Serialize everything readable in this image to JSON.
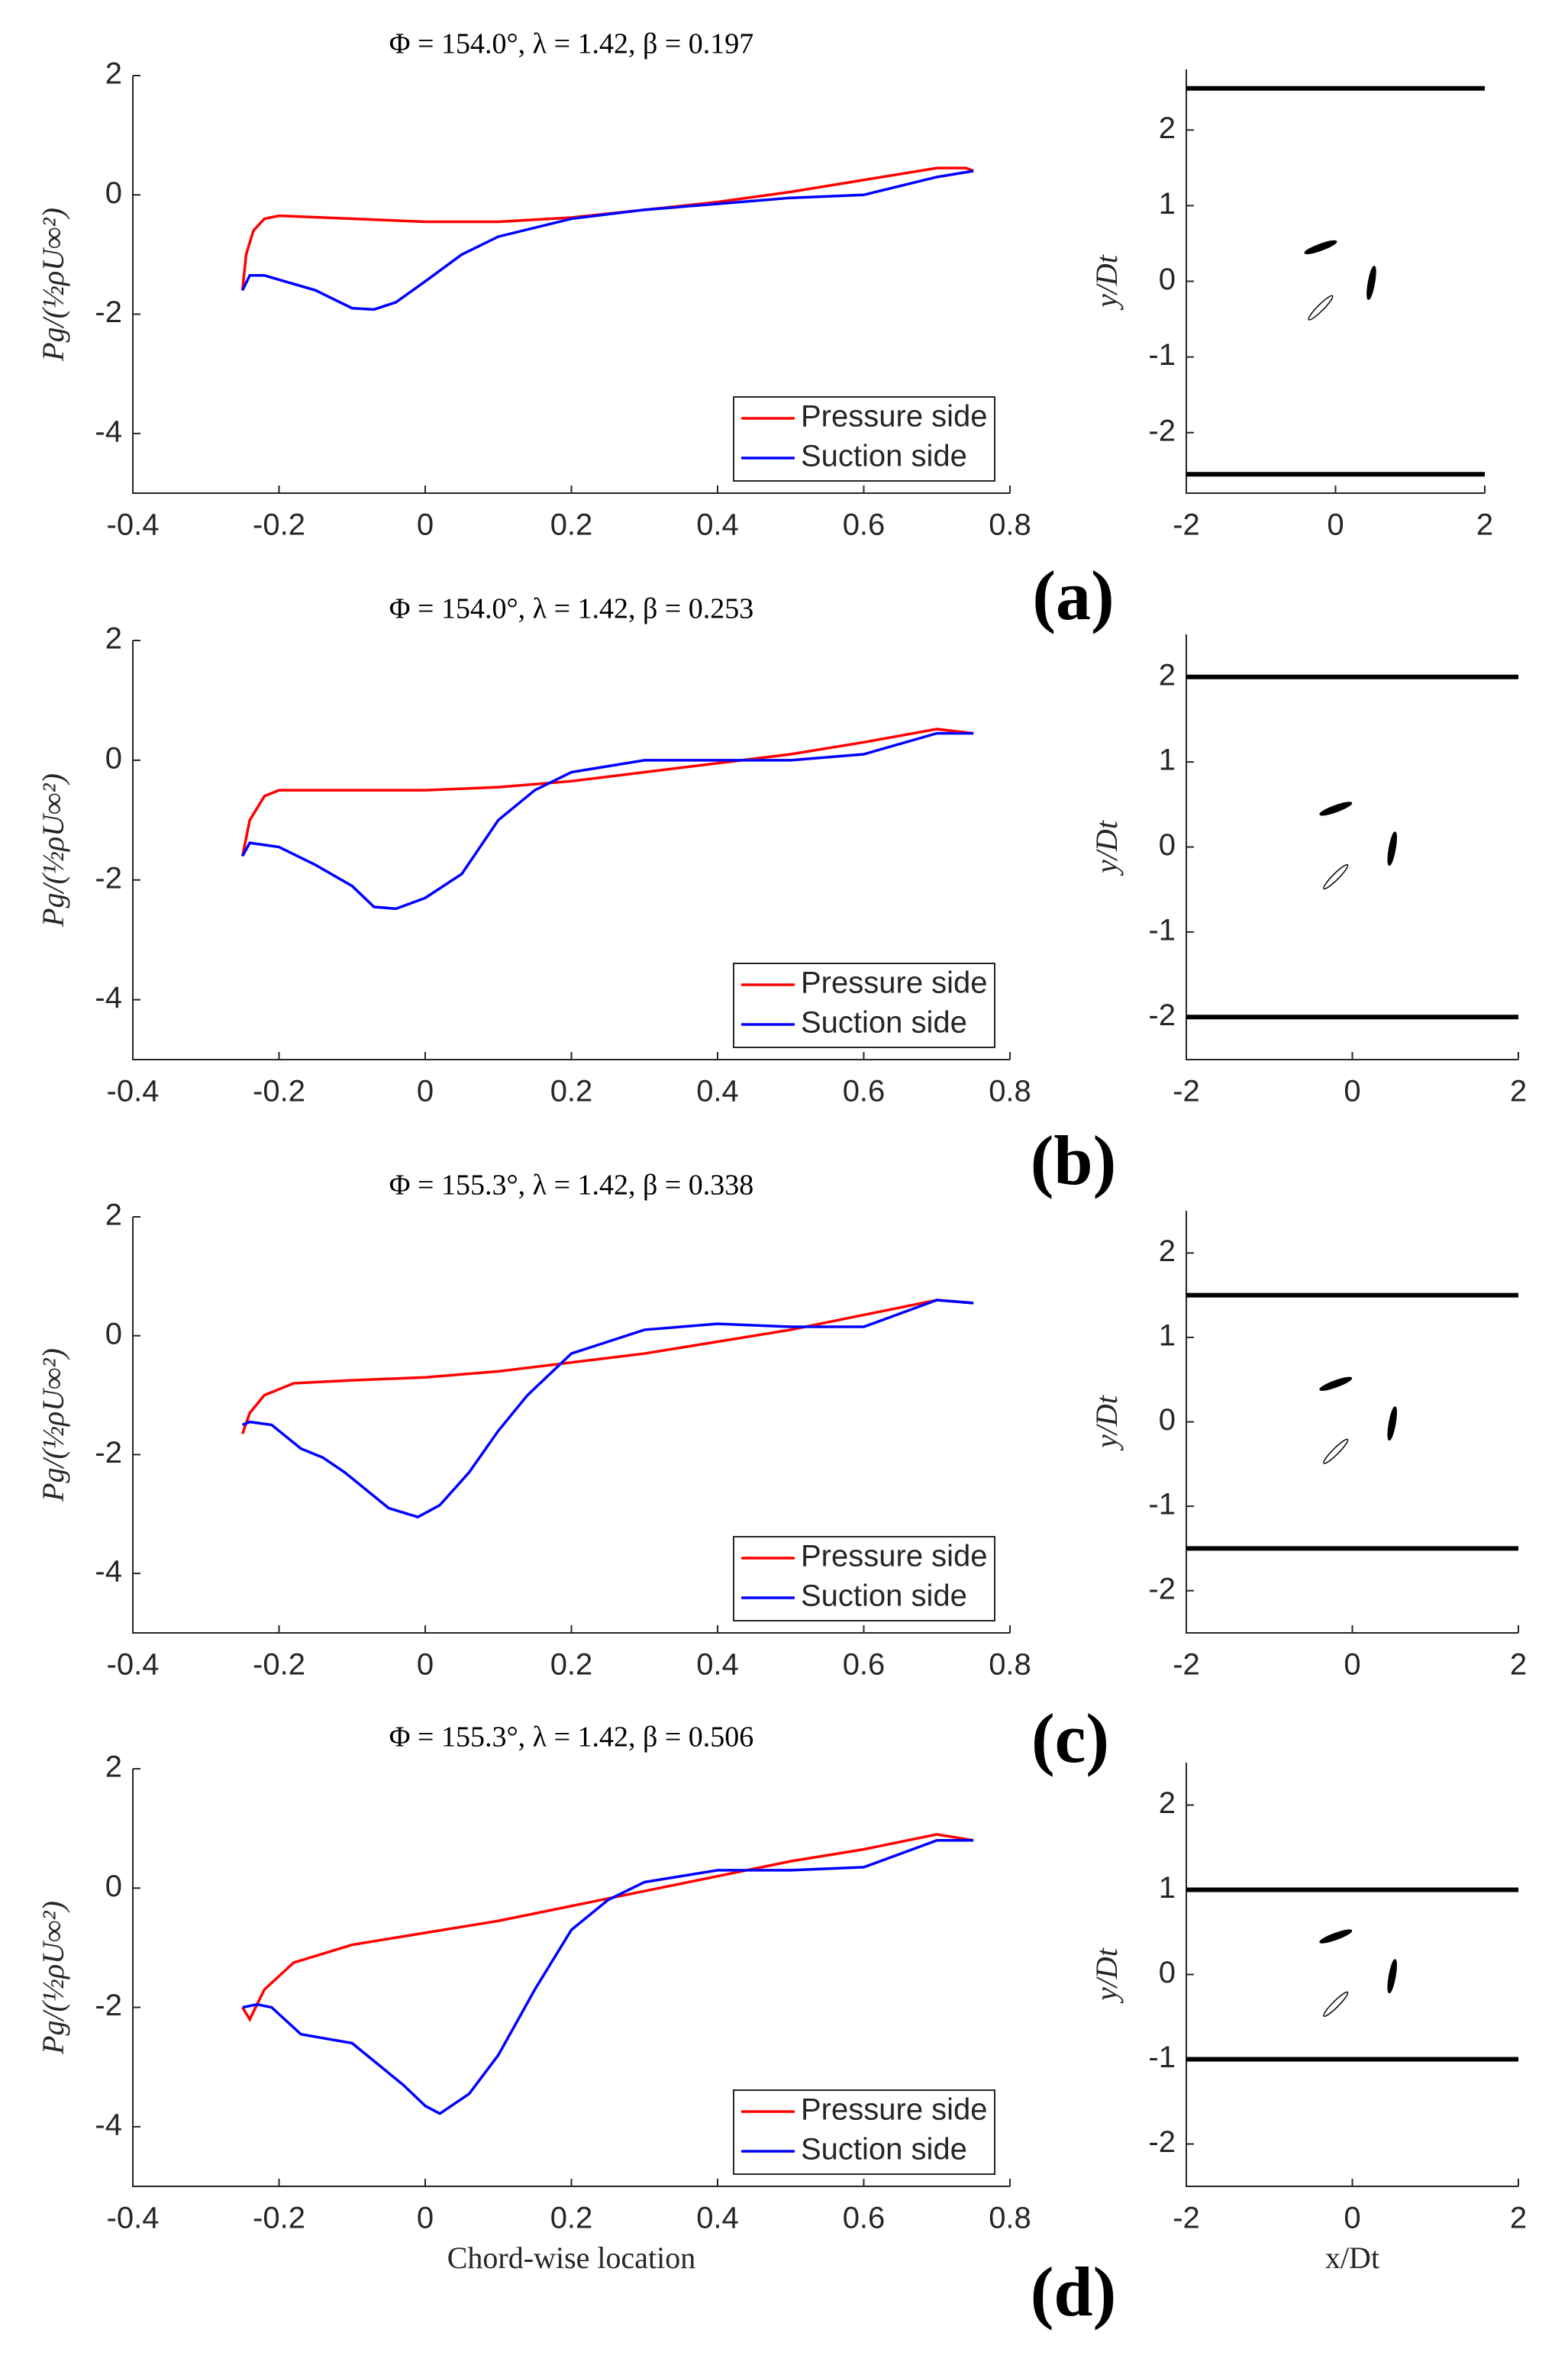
{
  "chart_data": [
    {
      "type": "line",
      "title": "Φ = 154.0°, λ = 1.42, β = 0.197",
      "ylabel": "Pg/(½ρU∞²)",
      "xlim": [
        -0.4,
        0.8
      ],
      "xticks": [
        -0.4,
        -0.2,
        0,
        0.2,
        0.4,
        0.6,
        0.8
      ],
      "ylim": [
        -5,
        2
      ],
      "yticks": [
        -4,
        -2,
        0,
        2
      ],
      "legend": "lower right",
      "series": [
        {
          "name": "Pressure side",
          "color": "#ff0000",
          "x": [
            -0.25,
            -0.245,
            -0.235,
            -0.22,
            -0.2,
            -0.1,
            0,
            0.1,
            0.2,
            0.3,
            0.4,
            0.5,
            0.6,
            0.7,
            0.74,
            0.75
          ],
          "values": [
            -1.6,
            -1.0,
            -0.6,
            -0.4,
            -0.35,
            -0.4,
            -0.45,
            -0.45,
            -0.38,
            -0.25,
            -0.12,
            0.05,
            0.25,
            0.45,
            0.45,
            0.4
          ]
        },
        {
          "name": "Suction side",
          "color": "#0000ff",
          "x": [
            -0.25,
            -0.24,
            -0.22,
            -0.15,
            -0.1,
            -0.07,
            -0.04,
            0,
            0.05,
            0.1,
            0.2,
            0.3,
            0.4,
            0.5,
            0.6,
            0.7,
            0.75
          ],
          "values": [
            -1.6,
            -1.35,
            -1.35,
            -1.6,
            -1.9,
            -1.92,
            -1.8,
            -1.45,
            -1.0,
            -0.7,
            -0.4,
            -0.25,
            -0.15,
            -0.05,
            0.0,
            0.3,
            0.4
          ]
        }
      ]
    },
    {
      "type": "walls",
      "ylabel": "y/Dt",
      "annotation": "(a)",
      "xlim": [
        -2,
        2
      ],
      "xticks": [
        -2,
        0,
        2
      ],
      "ylim": [
        -2.8,
        2.8
      ],
      "yticks": [
        -2,
        -1,
        0,
        1,
        2
      ],
      "color": "#000000",
      "values": [
        2.55,
        -2.55
      ]
    },
    {
      "type": "line",
      "title": "Φ = 154.0°, λ = 1.42, β = 0.253",
      "ylabel": "Pg/(½ρU∞²)",
      "xlim": [
        -0.4,
        0.8
      ],
      "xticks": [
        -0.4,
        -0.2,
        0,
        0.2,
        0.4,
        0.6,
        0.8
      ],
      "ylim": [
        -5,
        2
      ],
      "yticks": [
        -4,
        -2,
        0,
        2
      ],
      "legend": "lower right",
      "series": [
        {
          "name": "Pressure side",
          "color": "#ff0000",
          "x": [
            -0.25,
            -0.24,
            -0.22,
            -0.2,
            -0.1,
            0,
            0.1,
            0.2,
            0.3,
            0.4,
            0.5,
            0.6,
            0.7,
            0.75
          ],
          "values": [
            -1.6,
            -1.0,
            -0.6,
            -0.5,
            -0.5,
            -0.5,
            -0.45,
            -0.35,
            -0.2,
            -0.05,
            0.1,
            0.3,
            0.52,
            0.45
          ]
        },
        {
          "name": "Suction side",
          "color": "#0000ff",
          "x": [
            -0.25,
            -0.24,
            -0.2,
            -0.15,
            -0.1,
            -0.07,
            -0.04,
            0,
            0.05,
            0.1,
            0.15,
            0.2,
            0.3,
            0.4,
            0.5,
            0.6,
            0.7,
            0.75
          ],
          "values": [
            -1.6,
            -1.38,
            -1.45,
            -1.75,
            -2.1,
            -2.45,
            -2.48,
            -2.3,
            -1.9,
            -1.0,
            -0.5,
            -0.2,
            0.0,
            0.0,
            0.0,
            0.1,
            0.45,
            0.45
          ]
        }
      ]
    },
    {
      "type": "walls",
      "ylabel": "y/Dt",
      "annotation": "(b)",
      "xlim": [
        -2,
        2
      ],
      "xticks": [
        -2,
        0,
        2
      ],
      "ylim": [
        -2.5,
        2.5
      ],
      "yticks": [
        -2,
        -1,
        0,
        1,
        2
      ],
      "color": "#000000",
      "values": [
        2,
        -2
      ]
    },
    {
      "type": "line",
      "title": "Φ = 155.3°, λ = 1.42, β = 0.338",
      "ylabel": "Pg/(½ρU∞²)",
      "xlim": [
        -0.4,
        0.8
      ],
      "xticks": [
        -0.4,
        -0.2,
        0,
        0.2,
        0.4,
        0.6,
        0.8
      ],
      "ylim": [
        -5,
        2
      ],
      "yticks": [
        -4,
        -2,
        0,
        2
      ],
      "legend": "lower right",
      "series": [
        {
          "name": "Pressure side",
          "color": "#ff0000",
          "x": [
            -0.25,
            -0.24,
            -0.22,
            -0.18,
            -0.1,
            0,
            0.1,
            0.2,
            0.3,
            0.4,
            0.5,
            0.6,
            0.7,
            0.75
          ],
          "values": [
            -1.65,
            -1.3,
            -1.0,
            -0.8,
            -0.75,
            -0.7,
            -0.6,
            -0.45,
            -0.3,
            -0.1,
            0.1,
            0.35,
            0.6,
            0.55
          ]
        },
        {
          "name": "Suction side",
          "color": "#0000ff",
          "x": [
            -0.25,
            -0.24,
            -0.21,
            -0.17,
            -0.14,
            -0.11,
            -0.05,
            -0.01,
            0.02,
            0.06,
            0.1,
            0.14,
            0.2,
            0.3,
            0.4,
            0.5,
            0.6,
            0.7,
            0.75
          ],
          "values": [
            -1.5,
            -1.45,
            -1.5,
            -1.9,
            -2.05,
            -2.3,
            -2.9,
            -3.05,
            -2.85,
            -2.3,
            -1.6,
            -1.0,
            -0.3,
            0.1,
            0.2,
            0.15,
            0.15,
            0.6,
            0.55
          ]
        }
      ]
    },
    {
      "type": "walls",
      "ylabel": "y/Dt",
      "annotation": "(c)",
      "xlim": [
        -2,
        2
      ],
      "xticks": [
        -2,
        0,
        2
      ],
      "ylim": [
        -2.5,
        2.5
      ],
      "yticks": [
        -2,
        -1,
        0,
        1,
        2
      ],
      "color": "#000000",
      "values": [
        1.5,
        -1.5
      ]
    },
    {
      "type": "line",
      "title": "Φ = 155.3°, λ = 1.42, β = 0.506",
      "ylabel": "Pg/(½ρU∞²)",
      "xlabel": "Chord-wise location",
      "xlim": [
        -0.4,
        0.8
      ],
      "xticks": [
        -0.4,
        -0.2,
        0,
        0.2,
        0.4,
        0.6,
        0.8
      ],
      "ylim": [
        -5,
        2
      ],
      "yticks": [
        -4,
        -2,
        0,
        2
      ],
      "legend": "lower right",
      "series": [
        {
          "name": "Pressure side",
          "color": "#ff0000",
          "x": [
            -0.25,
            -0.24,
            -0.22,
            -0.18,
            -0.1,
            0,
            0.1,
            0.2,
            0.3,
            0.4,
            0.5,
            0.6,
            0.7,
            0.75
          ],
          "values": [
            -2.0,
            -2.2,
            -1.7,
            -1.25,
            -0.95,
            -0.75,
            -0.55,
            -0.3,
            -0.05,
            0.2,
            0.45,
            0.65,
            0.9,
            0.8
          ]
        },
        {
          "name": "Suction side",
          "color": "#0000ff",
          "x": [
            -0.25,
            -0.23,
            -0.21,
            -0.17,
            -0.1,
            -0.07,
            -0.03,
            0,
            0.02,
            0.06,
            0.1,
            0.15,
            0.2,
            0.25,
            0.3,
            0.4,
            0.5,
            0.6,
            0.7,
            0.75
          ],
          "values": [
            -2.0,
            -1.95,
            -2.0,
            -2.45,
            -2.6,
            -2.9,
            -3.3,
            -3.65,
            -3.78,
            -3.45,
            -2.8,
            -1.7,
            -0.7,
            -0.2,
            0.1,
            0.3,
            0.3,
            0.35,
            0.8,
            0.8
          ]
        }
      ]
    },
    {
      "type": "walls",
      "ylabel": "y/Dt",
      "xlabel": "x/Dt",
      "annotation": "(d)",
      "xlim": [
        -2,
        2
      ],
      "xticks": [
        -2,
        0,
        2
      ],
      "ylim": [
        -2.5,
        2.5
      ],
      "yticks": [
        -2,
        -1,
        0,
        1,
        2
      ],
      "color": "#000000",
      "values": [
        1,
        -1
      ]
    }
  ]
}
